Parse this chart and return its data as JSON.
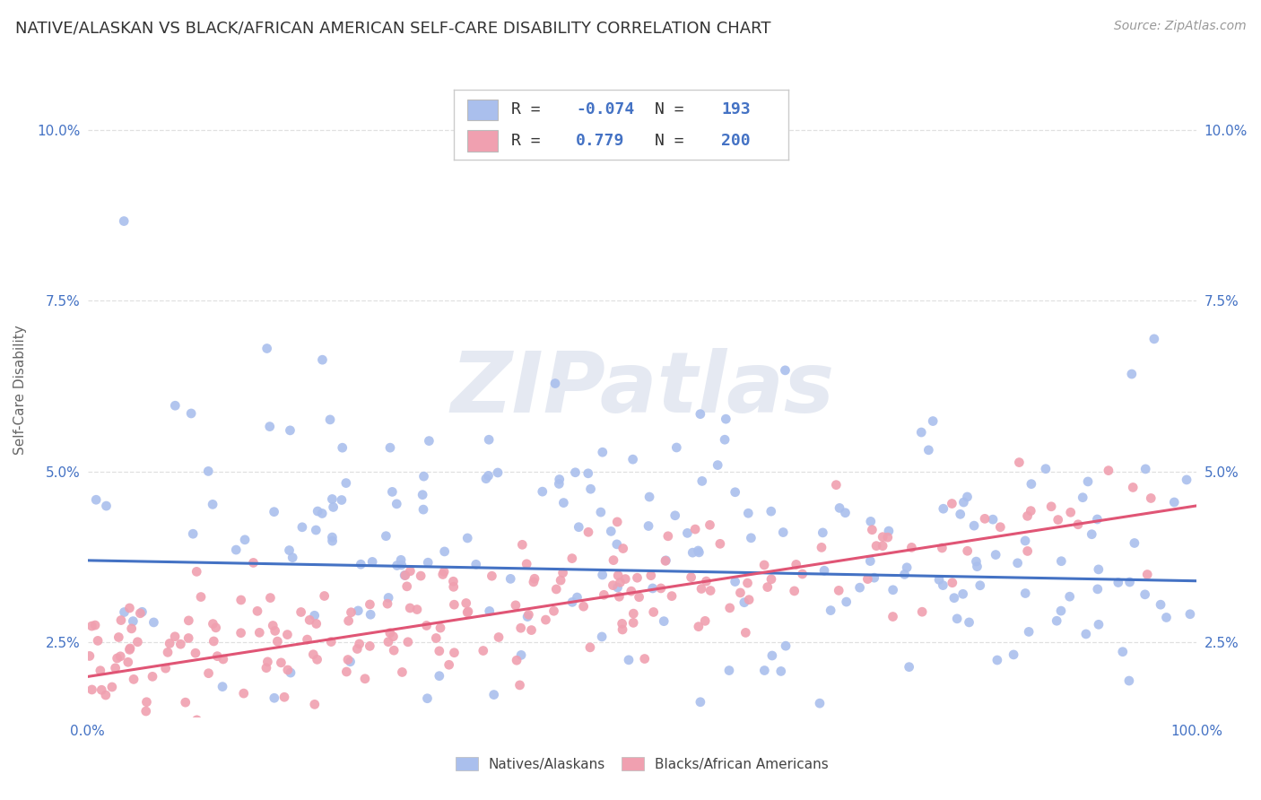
{
  "title": "NATIVE/ALASKAN VS BLACK/AFRICAN AMERICAN SELF-CARE DISABILITY CORRELATION CHART",
  "source": "Source: ZipAtlas.com",
  "ylabel": "Self-Care Disability",
  "ytick_labels": [
    "2.5%",
    "5.0%",
    "7.5%",
    "10.0%"
  ],
  "ytick_values": [
    0.025,
    0.05,
    0.075,
    0.1
  ],
  "watermark": "ZIPatlas",
  "blue_scatter_color": "#aabfed",
  "blue_line_color": "#4472c4",
  "pink_scatter_color": "#f0a0b0",
  "pink_line_color": "#e05575",
  "background_color": "#ffffff",
  "grid_color": "#e0e0e0",
  "title_fontsize": 13,
  "axis_label_fontsize": 11,
  "tick_fontsize": 11,
  "source_fontsize": 10,
  "blue_R": -0.074,
  "blue_N": 193,
  "pink_R": 0.779,
  "pink_N": 200,
  "xlim": [
    0.0,
    1.0
  ],
  "ylim": [
    0.014,
    0.11
  ],
  "blue_line_start": 0.037,
  "blue_line_end": 0.034,
  "pink_line_start": 0.02,
  "pink_line_end": 0.045
}
